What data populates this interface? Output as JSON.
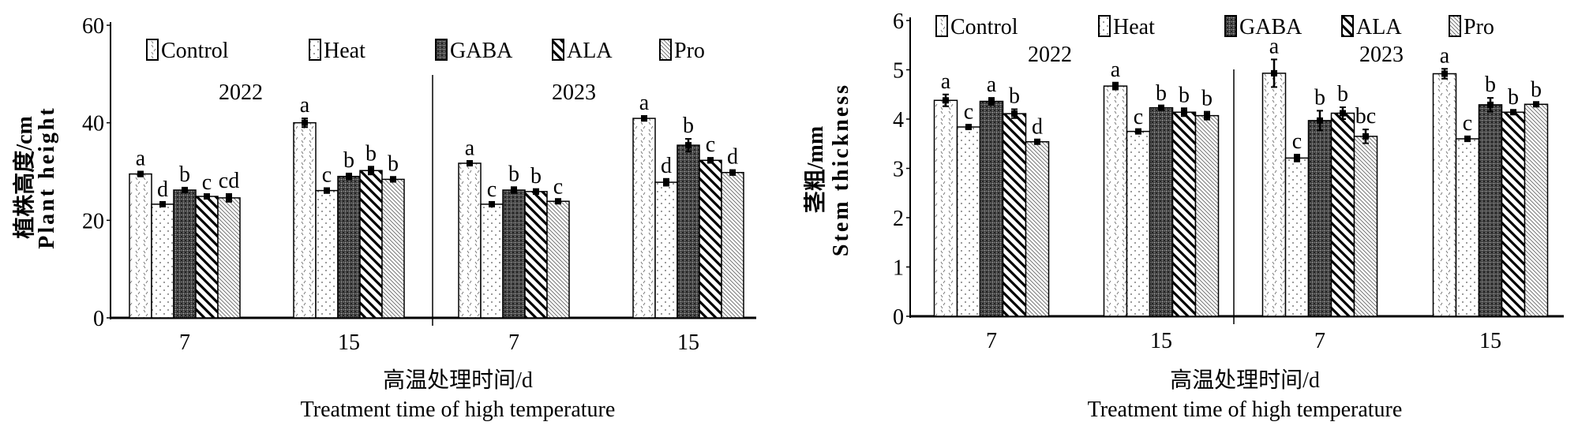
{
  "chart_data": [
    {
      "type": "bar",
      "title": "",
      "ylabel_cn": "植株高度/cm",
      "ylabel": "Plant height",
      "xlabel_cn": "高温处理时间/d",
      "xlabel": "Treatment time of high temperature",
      "ylim": [
        0,
        60
      ],
      "yticks": [
        "0",
        "20",
        "40",
        "60"
      ],
      "year_labels": [
        "2022",
        "2023"
      ],
      "categories": [
        "7",
        "15",
        "7",
        "15"
      ],
      "legend": [
        "Control",
        "Heat",
        "GABA",
        "ALA",
        "Pro"
      ],
      "legend_placement": "top",
      "series": [
        {
          "name": "Control",
          "values": [
            29.5,
            40.0,
            31.7,
            40.9
          ],
          "error": [
            0.5,
            0.9,
            0.4,
            0.5
          ],
          "letters": [
            "a",
            "a",
            "a",
            "a"
          ]
        },
        {
          "name": "Heat",
          "values": [
            23.3,
            26.1,
            23.3,
            27.8
          ],
          "error": [
            0.3,
            0.5,
            0.3,
            0.7
          ],
          "letters": [
            "d",
            "c",
            "c",
            "d"
          ]
        },
        {
          "name": "GABA",
          "values": [
            26.2,
            29.0,
            26.2,
            35.4
          ],
          "error": [
            0.5,
            0.6,
            0.6,
            1.3
          ],
          "letters": [
            "b",
            "b",
            "b",
            "b"
          ]
        },
        {
          "name": "ALA",
          "values": [
            24.9,
            30.2,
            25.9,
            32.3
          ],
          "error": [
            0.2,
            0.8,
            0.5,
            0.5
          ],
          "letters": [
            "c",
            "b",
            "b",
            "c"
          ]
        },
        {
          "name": "Pro",
          "values": [
            24.6,
            28.4,
            23.9,
            29.8
          ],
          "error": [
            0.8,
            0.5,
            0.3,
            0.5
          ],
          "letters": [
            "cd",
            "b",
            "c",
            "d"
          ]
        }
      ]
    },
    {
      "type": "bar",
      "title": "",
      "ylabel_cn": "茎粗/mm",
      "ylabel": "Stem thickness",
      "xlabel_cn": "高温处理时间/d",
      "xlabel": "Treatment time of high temperature",
      "ylim": [
        0,
        6
      ],
      "yticks": [
        "0",
        "1",
        "2",
        "3",
        "4",
        "5",
        "6"
      ],
      "year_labels": [
        "2022",
        "2023"
      ],
      "categories": [
        "7",
        "15",
        "7",
        "15"
      ],
      "legend": [
        "Control",
        "Heat",
        "GABA",
        "ALA",
        "Pro"
      ],
      "legend_placement": "top",
      "series": [
        {
          "name": "Control",
          "values": [
            4.38,
            4.67,
            4.93,
            4.92
          ],
          "error": [
            0.12,
            0.07,
            0.28,
            0.1
          ],
          "letters": [
            "a",
            "a",
            "a",
            "a"
          ]
        },
        {
          "name": "Heat",
          "values": [
            3.84,
            3.75,
            3.21,
            3.6
          ],
          "error": [
            0.04,
            0.03,
            0.07,
            0.05
          ],
          "letters": [
            "c",
            "c",
            "c",
            "c"
          ]
        },
        {
          "name": "GABA",
          "values": [
            4.36,
            4.23,
            3.97,
            4.29
          ],
          "error": [
            0.07,
            0.03,
            0.2,
            0.14
          ],
          "letters": [
            "a",
            "b",
            "b",
            "b"
          ]
        },
        {
          "name": "ALA",
          "values": [
            4.11,
            4.14,
            4.12,
            4.14
          ],
          "error": [
            0.09,
            0.08,
            0.12,
            0.04
          ],
          "letters": [
            "b",
            "b",
            "b",
            "b"
          ]
        },
        {
          "name": "Pro",
          "values": [
            3.54,
            4.07,
            3.65,
            4.3
          ],
          "error": [
            0.04,
            0.08,
            0.14,
            0.03
          ],
          "letters": [
            "d",
            "b",
            "bc",
            "b"
          ]
        }
      ]
    }
  ],
  "colors": {
    "axis": "#000000",
    "bar_fill": "#ffffff",
    "gaba_dark": "#555555"
  }
}
